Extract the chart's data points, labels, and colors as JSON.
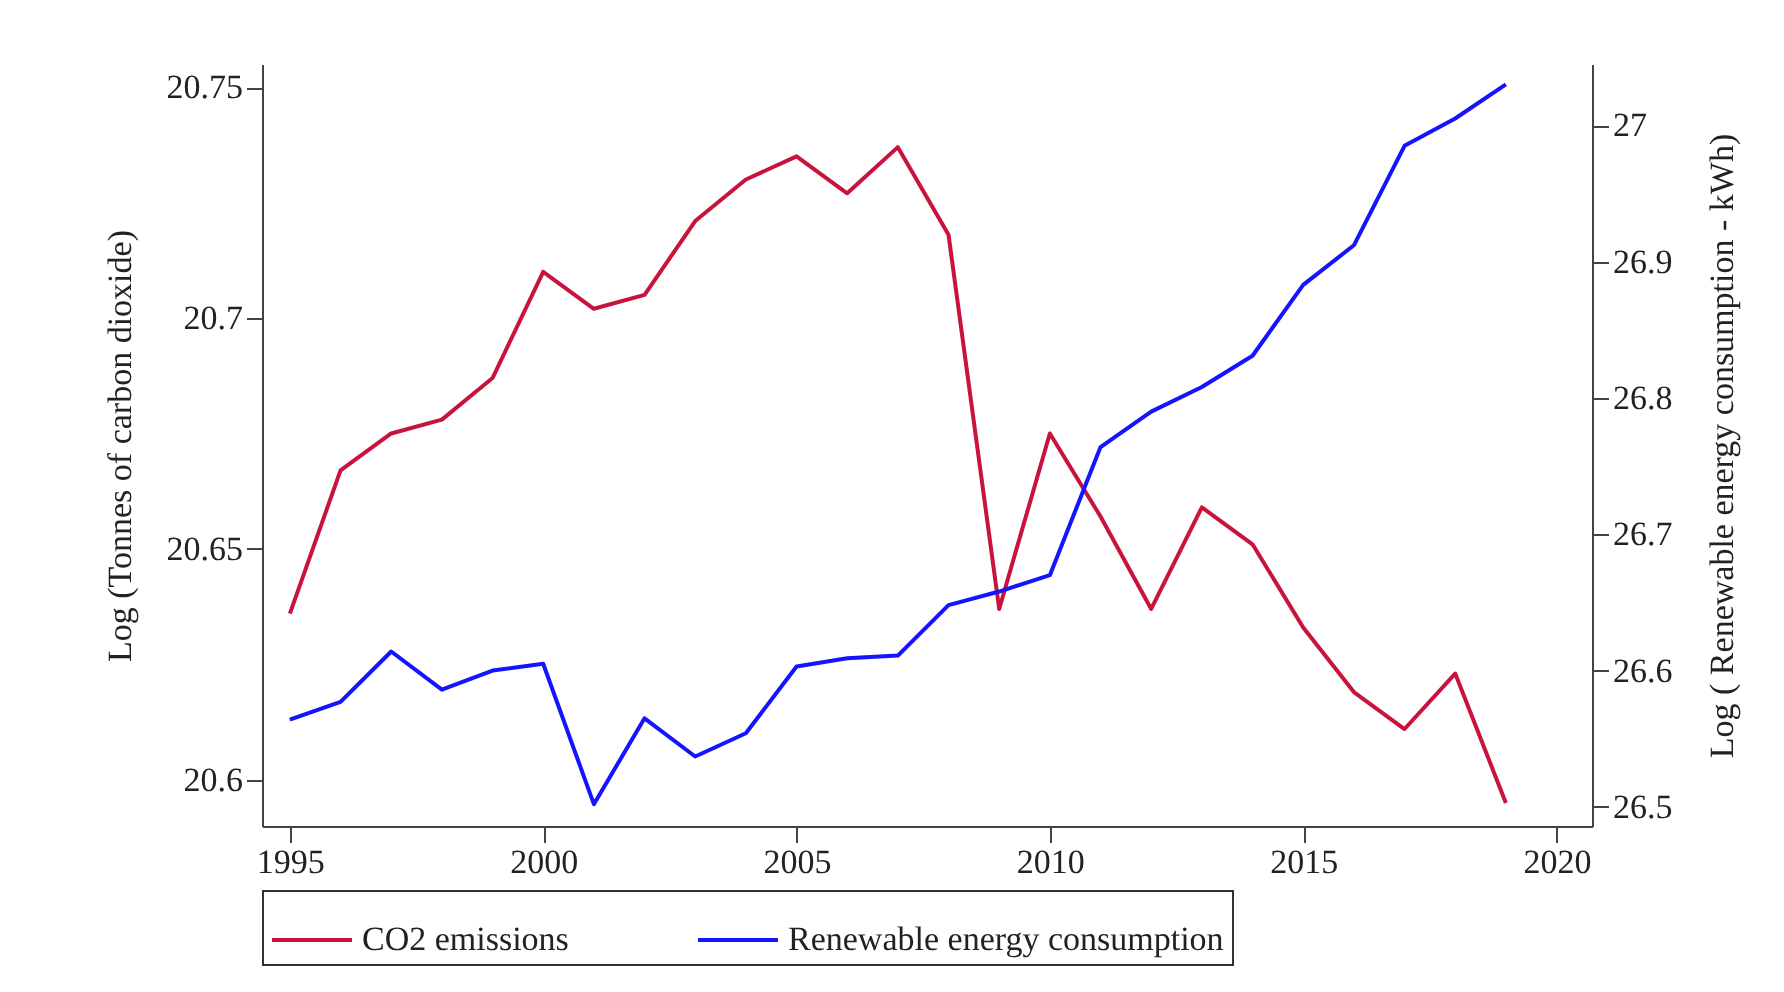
{
  "chart_data": {
    "type": "line",
    "ylabel": "Log (Tonnes of carbon dioxide)",
    "y2label": "Log ( Renewable energy consumption - kWh)",
    "x": [
      1995,
      1996,
      1997,
      1998,
      1999,
      2000,
      2001,
      2002,
      2003,
      2004,
      2005,
      2006,
      2007,
      2008,
      2009,
      2010,
      2011,
      2012,
      2013,
      2014,
      2015,
      2016,
      2017,
      2018,
      2019
    ],
    "series": [
      {
        "name": "CO2 emissions",
        "color": "#c8143c",
        "values": [
          20.636,
          20.667,
          20.675,
          20.678,
          20.687,
          20.71,
          20.702,
          20.705,
          20.721,
          20.73,
          20.735,
          20.727,
          20.737,
          20.718,
          20.637,
          20.675,
          20.657,
          20.637,
          20.659,
          20.651,
          20.633,
          20.619,
          20.611,
          20.623,
          20.595
        ]
      },
      {
        "name": "Renewable energy consumption",
        "color": "#1414ff",
        "axis": "y2",
        "values": [
          26.564,
          26.577,
          26.614,
          26.586,
          26.6,
          26.605,
          26.502,
          26.565,
          26.537,
          26.554,
          26.603,
          26.609,
          26.611,
          26.648,
          26.658,
          26.67,
          26.764,
          26.79,
          26.808,
          26.831,
          26.883,
          26.912,
          26.985,
          27.005,
          27.03
        ]
      }
    ],
    "xlim": [
      1994.45,
      2020.7
    ],
    "xticks": [
      1995,
      2000,
      2005,
      2010,
      2015,
      2020
    ],
    "ylim": [
      20.59,
      20.755
    ],
    "yticks": [
      20.6,
      20.65,
      20.7,
      20.75
    ],
    "y2lim": [
      26.486,
      27.045
    ],
    "y2ticks": [
      26.5,
      26.6,
      26.7,
      26.8,
      26.9,
      27
    ],
    "grid": false,
    "legend": "bottom",
    "marker": "none",
    "line_style": "solid"
  }
}
